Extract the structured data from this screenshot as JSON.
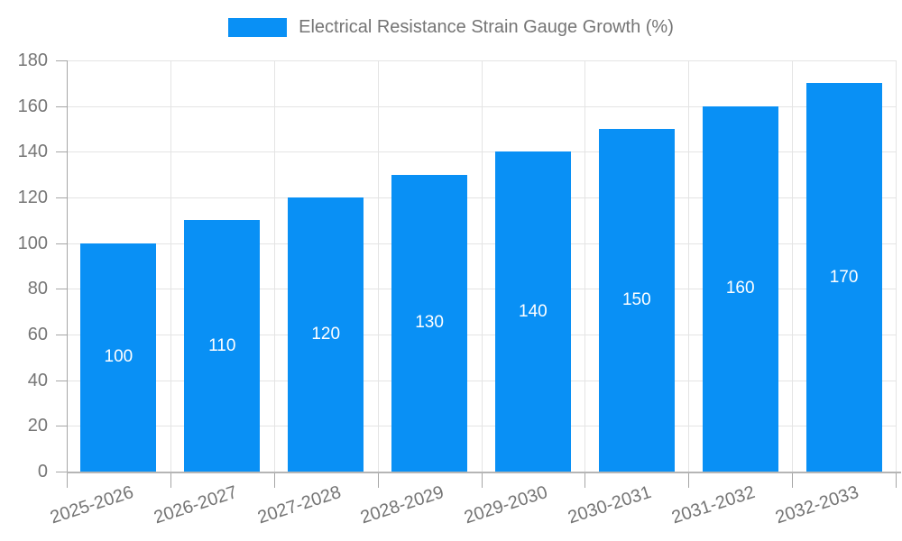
{
  "chart_data": {
    "type": "bar",
    "title": "Electrical Resistance Strain Gauge Growth (%)",
    "categories": [
      "2025-2026",
      "2026-2027",
      "2027-2028",
      "2028-2029",
      "2029-2030",
      "2030-2031",
      "2031-2032",
      "2032-2033"
    ],
    "values": [
      100,
      110,
      120,
      130,
      140,
      150,
      160,
      170
    ],
    "series": [
      {
        "name": "Electrical Resistance Strain Gauge Growth (%)",
        "values": [
          100,
          110,
          120,
          130,
          140,
          150,
          160,
          170
        ]
      }
    ],
    "xlabel": "",
    "ylabel": "",
    "ylim": [
      0,
      180
    ],
    "ytick_step": 20,
    "yticks": [
      0,
      20,
      40,
      60,
      80,
      100,
      120,
      140,
      160,
      180
    ],
    "grid": true,
    "legend_position": "top-center",
    "bar_label_position": "inside-center",
    "x_label_rotation_deg": -18,
    "colors": {
      "bar": "#0990F5",
      "grid": "#e4e4e4",
      "axis": "#a6a6a6",
      "tick_text": "#757575",
      "legend_text": "#757575",
      "bar_label_text": "#ffffff",
      "background": "#ffffff"
    }
  }
}
